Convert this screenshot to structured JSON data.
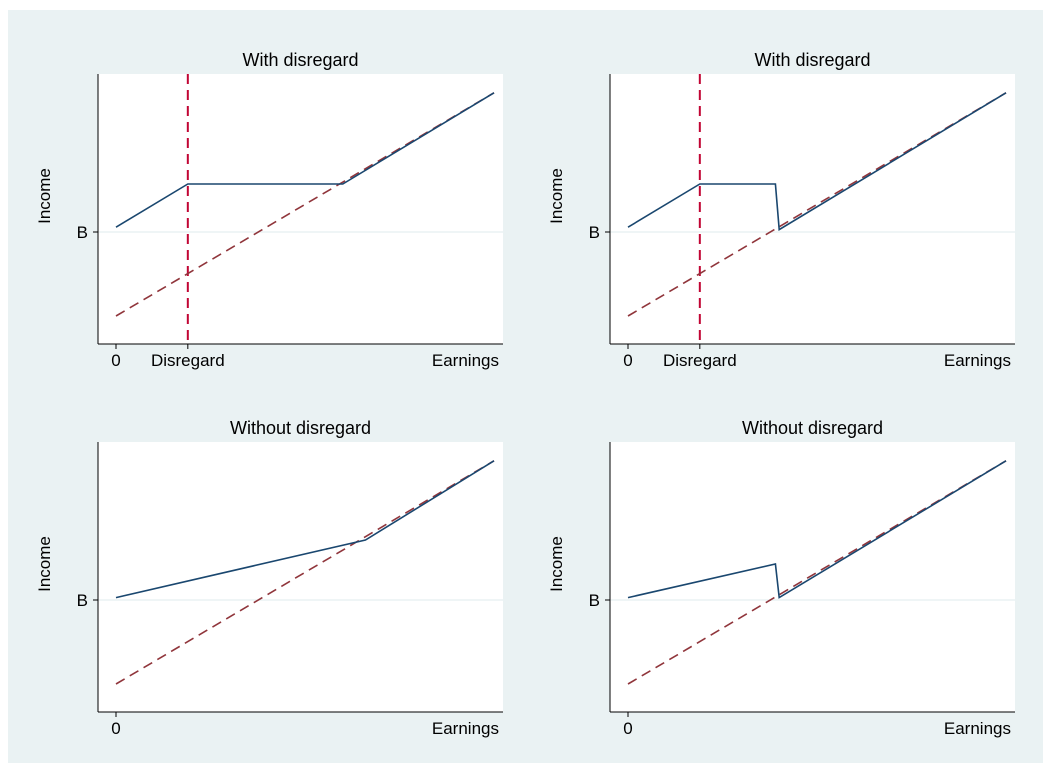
{
  "colors": {
    "figure_background": "#eaf2f3",
    "plot_background": "#ffffff",
    "income_line": "#1a476f",
    "earnings_line": "#90353b",
    "disregard_line": "#c10534",
    "gridline": "#eaf2f3",
    "axis": "#000000"
  },
  "chart_data": [
    {
      "type": "line",
      "title": "With disregard",
      "xlabel": "Earnings",
      "ylabel": "Income",
      "xlim": [
        0,
        1
      ],
      "ylim": [
        0,
        1
      ],
      "x_ticks": [
        {
          "value": 0,
          "label": "0"
        },
        {
          "value": 0.19,
          "label": "Disregard"
        }
      ],
      "y_ticks": [
        {
          "value": 0.4,
          "label": "B"
        }
      ],
      "grid": "horizontal at B",
      "series": [
        {
          "style": "solid",
          "color": "#1a476f",
          "points": [
            [
              0,
              0.42
            ],
            [
              0.19,
              0.6
            ],
            [
              0.6,
              0.6
            ],
            [
              1.0,
              0.98
            ]
          ]
        },
        {
          "style": "dashed",
          "color": "#90353b",
          "points": [
            [
              0,
              0.05
            ],
            [
              1.0,
              0.98
            ]
          ]
        }
      ],
      "vline": {
        "x": 0.19,
        "style": "dashed",
        "color": "#c10534"
      }
    },
    {
      "type": "line",
      "title": "With disregard",
      "xlabel": "Earnings",
      "ylabel": "Income",
      "xlim": [
        0,
        1
      ],
      "ylim": [
        0,
        1
      ],
      "x_ticks": [
        {
          "value": 0,
          "label": "0"
        },
        {
          "value": 0.19,
          "label": "Disregard"
        }
      ],
      "y_ticks": [
        {
          "value": 0.4,
          "label": "B"
        }
      ],
      "grid": "horizontal at B",
      "series": [
        {
          "style": "solid",
          "color": "#1a476f",
          "points": [
            [
              0,
              0.42
            ],
            [
              0.19,
              0.6
            ],
            [
              0.39,
              0.6
            ],
            [
              0.4,
              0.41
            ],
            [
              1.0,
              0.98
            ]
          ]
        },
        {
          "style": "dashed",
          "color": "#90353b",
          "points": [
            [
              0,
              0.05
            ],
            [
              1.0,
              0.98
            ]
          ]
        }
      ],
      "vline": {
        "x": 0.19,
        "style": "dashed",
        "color": "#c10534"
      }
    },
    {
      "type": "line",
      "title": "Without disregard",
      "xlabel": "Earnings",
      "ylabel": "Income",
      "xlim": [
        0,
        1
      ],
      "ylim": [
        0,
        1
      ],
      "x_ticks": [
        {
          "value": 0,
          "label": "0"
        }
      ],
      "y_ticks": [
        {
          "value": 0.4,
          "label": "B"
        }
      ],
      "grid": "horizontal at B",
      "series": [
        {
          "style": "solid",
          "color": "#1a476f",
          "points": [
            [
              0,
              0.41
            ],
            [
              0.66,
              0.65
            ],
            [
              1.0,
              0.98
            ]
          ]
        },
        {
          "style": "dashed",
          "color": "#90353b",
          "points": [
            [
              0,
              0.05
            ],
            [
              1.0,
              0.98
            ]
          ]
        }
      ]
    },
    {
      "type": "line",
      "title": "Without disregard",
      "xlabel": "Earnings",
      "ylabel": "Income",
      "xlim": [
        0,
        1
      ],
      "ylim": [
        0,
        1
      ],
      "x_ticks": [
        {
          "value": 0,
          "label": "0"
        }
      ],
      "y_ticks": [
        {
          "value": 0.4,
          "label": "B"
        }
      ],
      "grid": "horizontal at B",
      "series": [
        {
          "style": "solid",
          "color": "#1a476f",
          "points": [
            [
              0,
              0.41
            ],
            [
              0.39,
              0.55
            ],
            [
              0.4,
              0.41
            ],
            [
              1.0,
              0.98
            ]
          ]
        },
        {
          "style": "dashed",
          "color": "#90353b",
          "points": [
            [
              0,
              0.05
            ],
            [
              1.0,
              0.98
            ]
          ]
        }
      ]
    }
  ]
}
